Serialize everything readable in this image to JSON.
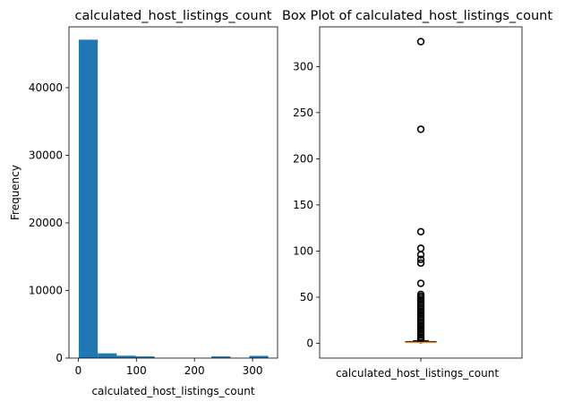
{
  "chart_data": [
    {
      "type": "bar",
      "title": "calculated_host_listings_count",
      "xlabel": "calculated_host_listings_count",
      "ylabel": "Frequency",
      "xlim": [
        -16,
        343
      ],
      "ylim": [
        0,
        49000
      ],
      "xticks": [
        0,
        100,
        200,
        300
      ],
      "yticks": [
        0,
        10000,
        20000,
        30000,
        40000
      ],
      "bin_edges": [
        1,
        33.6,
        66.2,
        98.8,
        131.4,
        164,
        196.6,
        229.2,
        261.8,
        294.4,
        327
      ],
      "values": [
        47100,
        700,
        350,
        250,
        0,
        0,
        0,
        250,
        0,
        330
      ],
      "colors": {
        "bar": "#1f77b4"
      },
      "grid": false
    },
    {
      "type": "box",
      "title": "Box Plot of calculated_host_listings_count",
      "category_label": "calculated_host_listings_count",
      "ylim": [
        -16,
        343
      ],
      "yticks": [
        0,
        50,
        100,
        150,
        200,
        250,
        300
      ],
      "stats": {
        "min": 1,
        "q1": 1,
        "median": 1,
        "q3": 2,
        "max": 3
      },
      "outliers": [
        327,
        232,
        121,
        103,
        96,
        91,
        87,
        65,
        53,
        51,
        49,
        47,
        45,
        43,
        41,
        39,
        37,
        35,
        33,
        31,
        29,
        27,
        25,
        23,
        21,
        19,
        17,
        15,
        13,
        11,
        9,
        7,
        6,
        5,
        4
      ],
      "colors": {
        "median": "#ff7f0e",
        "outlier": "#000000"
      },
      "grid": false
    }
  ]
}
